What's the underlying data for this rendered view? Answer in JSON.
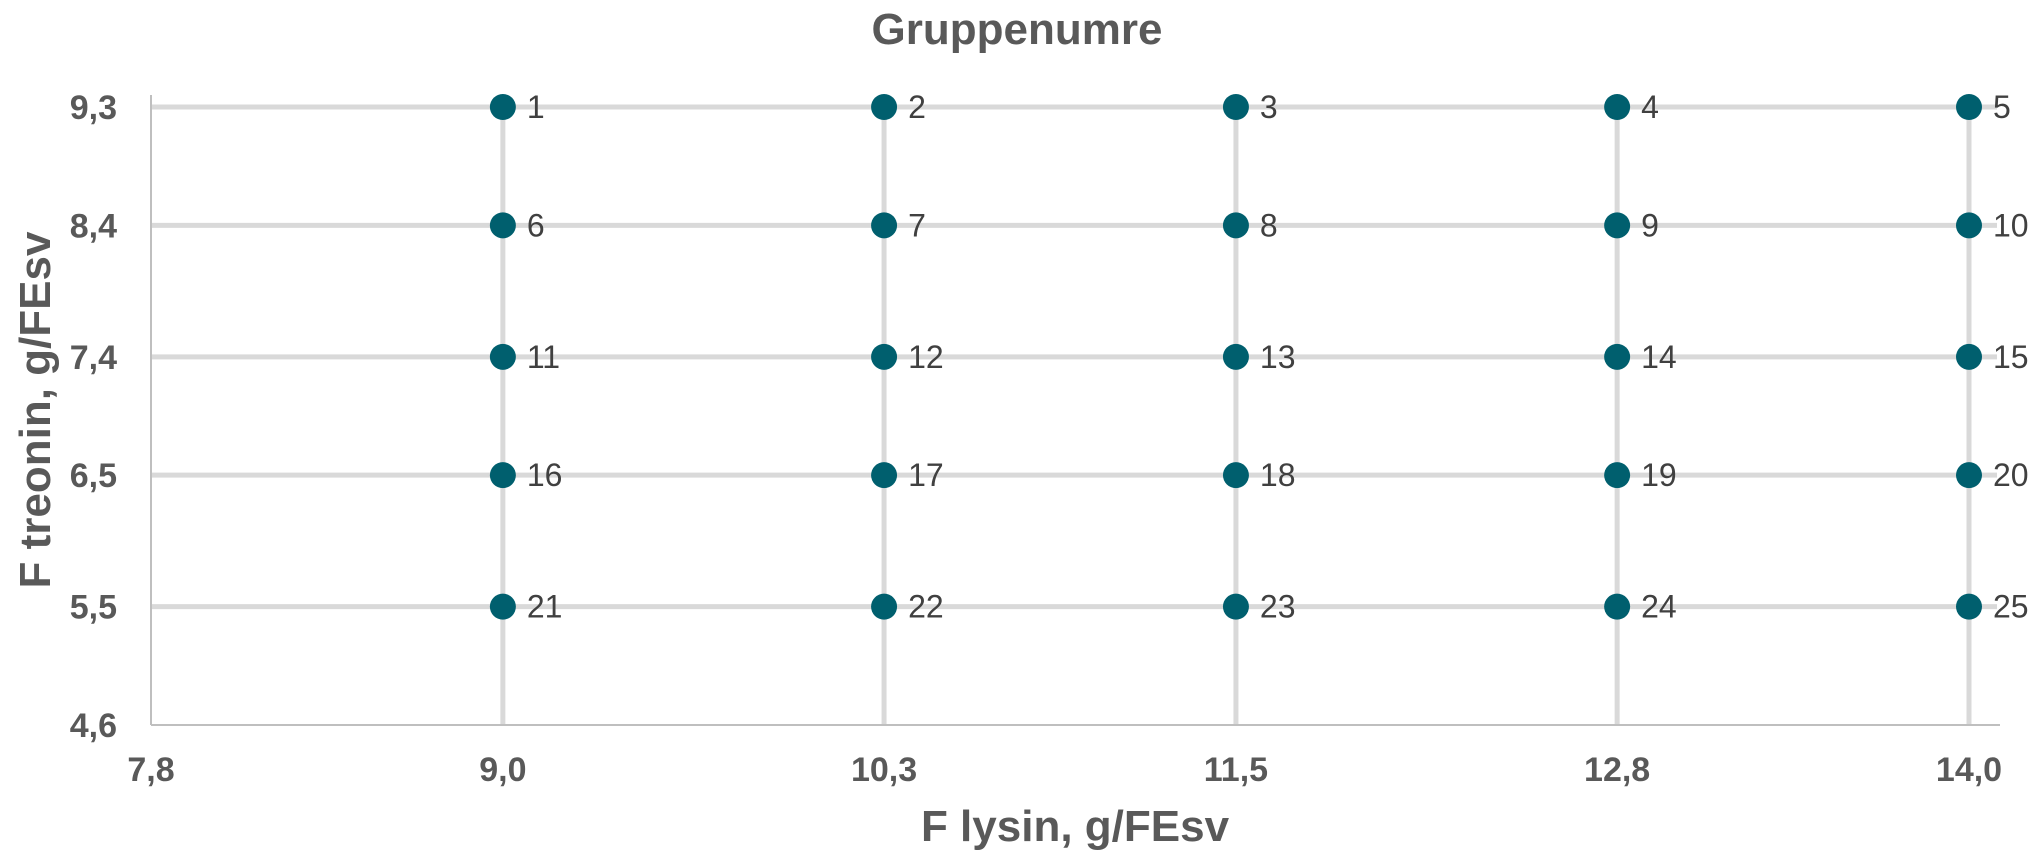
{
  "chart_data": {
    "type": "scatter",
    "title": "Gruppenumre",
    "xlabel": "F lysin, g/FEsv",
    "ylabel": "F treonin, g/FEsv",
    "xlim": [
      7.8,
      14.0
    ],
    "ylim": [
      4.6,
      9.3
    ],
    "x_ticks": [
      "7,8",
      "9,0",
      "10,3",
      "11,5",
      "12,8",
      "14,0"
    ],
    "y_ticks": [
      "4,6",
      "5,5",
      "6,5",
      "7,4",
      "8,4",
      "9,3"
    ],
    "grid": true,
    "legend": "none",
    "marker_color": "#005f6e",
    "points": [
      {
        "x": 9.0,
        "y": 9.3,
        "label": "1"
      },
      {
        "x": 10.3,
        "y": 9.3,
        "label": "2"
      },
      {
        "x": 11.5,
        "y": 9.3,
        "label": "3"
      },
      {
        "x": 12.8,
        "y": 9.3,
        "label": "4"
      },
      {
        "x": 14.0,
        "y": 9.3,
        "label": "5"
      },
      {
        "x": 9.0,
        "y": 8.4,
        "label": "6"
      },
      {
        "x": 10.3,
        "y": 8.4,
        "label": "7"
      },
      {
        "x": 11.5,
        "y": 8.4,
        "label": "8"
      },
      {
        "x": 12.8,
        "y": 8.4,
        "label": "9"
      },
      {
        "x": 14.0,
        "y": 8.4,
        "label": "10"
      },
      {
        "x": 9.0,
        "y": 7.4,
        "label": "11"
      },
      {
        "x": 10.3,
        "y": 7.4,
        "label": "12"
      },
      {
        "x": 11.5,
        "y": 7.4,
        "label": "13"
      },
      {
        "x": 12.8,
        "y": 7.4,
        "label": "14"
      },
      {
        "x": 14.0,
        "y": 7.4,
        "label": "15"
      },
      {
        "x": 9.0,
        "y": 6.5,
        "label": "16"
      },
      {
        "x": 10.3,
        "y": 6.5,
        "label": "17"
      },
      {
        "x": 11.5,
        "y": 6.5,
        "label": "18"
      },
      {
        "x": 12.8,
        "y": 6.5,
        "label": "19"
      },
      {
        "x": 14.0,
        "y": 6.5,
        "label": "20"
      },
      {
        "x": 9.0,
        "y": 5.5,
        "label": "21"
      },
      {
        "x": 10.3,
        "y": 5.5,
        "label": "22"
      },
      {
        "x": 11.5,
        "y": 5.5,
        "label": "23"
      },
      {
        "x": 12.8,
        "y": 5.5,
        "label": "24"
      },
      {
        "x": 14.0,
        "y": 5.5,
        "label": "25"
      }
    ]
  }
}
